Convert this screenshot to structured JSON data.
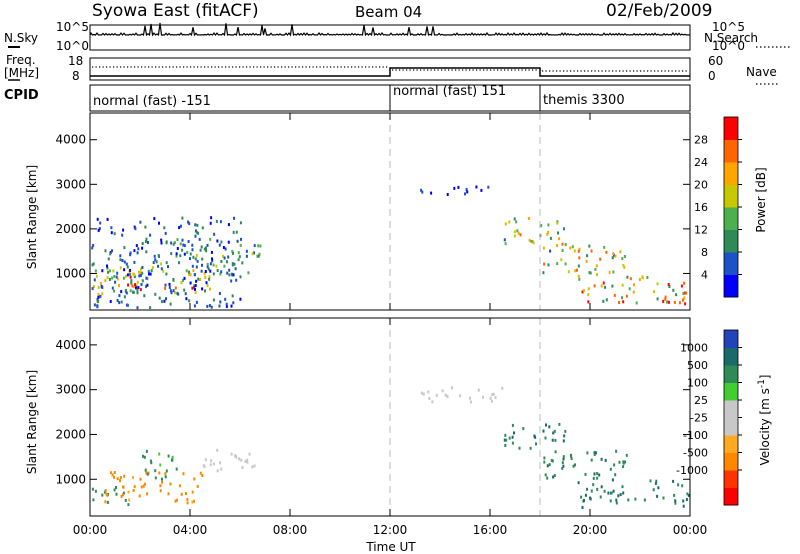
{
  "header": {
    "station": "Syowa East (fitACF)",
    "beam": "Beam 04",
    "date": "02/Feb/2009"
  },
  "nsky_panel": {
    "left_label": "N.Sky",
    "right_label": "N.Search",
    "left_ticks": [
      "10^5",
      "10^0"
    ],
    "right_ticks": [
      "10^5",
      "10^0"
    ]
  },
  "freq_panel": {
    "left_label_1": "Freq.",
    "left_label_2": "[MHz]",
    "right_label": "Nave",
    "left_ticks": [
      "18",
      "8"
    ],
    "right_ticks": [
      "60",
      "0"
    ]
  },
  "cpid_panel": {
    "label": "CPID",
    "segments": [
      {
        "label": "normal (fast) -151",
        "start_h": 0,
        "end_h": 12
      },
      {
        "label": "normal (fast) 151",
        "start_h": 12,
        "end_h": 18
      },
      {
        "label": "themis 3300",
        "start_h": 18,
        "end_h": 24
      }
    ]
  },
  "x_axis": {
    "title": "Time UT",
    "ticks": [
      "00:00",
      "04:00",
      "08:00",
      "12:00",
      "16:00",
      "20:00",
      "00:00"
    ]
  },
  "colors": {
    "power_scale": [
      "#0000ff",
      "#1e50c8",
      "#2e8b57",
      "#4caf50",
      "#c8c800",
      "#ffa500",
      "#ff6600",
      "#ff0000"
    ],
    "velocity_scale": [
      "#ff0000",
      "#ff3300",
      "#ff8800",
      "#ffaa22",
      "#c8c8c8",
      "#c8c8c8",
      "#44cc33",
      "#2e8b57",
      "#1a6a6a",
      "#2244bb"
    ]
  },
  "chart_data": [
    {
      "type": "heatmap",
      "title": "Power",
      "xlabel": "Time UT",
      "ylabel": "Slant Range [km]",
      "x_range_hours": [
        0,
        24
      ],
      "ylim": [
        180,
        4600
      ],
      "yticks": [
        1000,
        2000,
        3000,
        4000
      ],
      "colorbar_label": "Power [dB]",
      "colorbar_ticks": [
        "4",
        "8",
        "12",
        "16",
        "20",
        "24",
        "28"
      ],
      "colorbar_range": [
        0,
        30
      ],
      "echo_regions": [
        {
          "t0": 0.0,
          "t1": 2.5,
          "r0": 400,
          "r1": 1200,
          "v_lo": 8,
          "v_hi": 22
        },
        {
          "t0": 1.2,
          "t1": 4.8,
          "r0": 600,
          "r1": 1100,
          "v_lo": 14,
          "v_hi": 28
        },
        {
          "t0": 2.5,
          "t1": 6.8,
          "r0": 1000,
          "r1": 1800,
          "v_lo": 4,
          "v_hi": 16
        },
        {
          "t0": 0.0,
          "t1": 6.0,
          "r0": 250,
          "r1": 2300,
          "v_lo": 2,
          "v_hi": 10
        },
        {
          "t0": 13.2,
          "t1": 16.6,
          "r0": 2800,
          "r1": 3000,
          "v_lo": 2,
          "v_hi": 8
        },
        {
          "t0": 16.5,
          "t1": 19.0,
          "r0": 1700,
          "r1": 2300,
          "v_lo": 6,
          "v_hi": 24
        },
        {
          "t0": 18.0,
          "t1": 21.5,
          "r0": 1000,
          "r1": 1700,
          "v_lo": 6,
          "v_hi": 26
        },
        {
          "t0": 19.5,
          "t1": 24.0,
          "r0": 350,
          "r1": 1000,
          "v_lo": 8,
          "v_hi": 30
        }
      ]
    },
    {
      "type": "heatmap",
      "title": "Velocity",
      "xlabel": "Time UT",
      "ylabel": "Slant Range [km]",
      "x_range_hours": [
        0,
        24
      ],
      "ylim": [
        180,
        4600
      ],
      "yticks": [
        1000,
        2000,
        3000,
        4000
      ],
      "colorbar_label": "Velocity [m s^-1]",
      "colorbar_ticks": [
        "1000",
        "500",
        "100",
        "25",
        "-25",
        "-100",
        "-500",
        "-1000"
      ],
      "echo_regions": [
        {
          "t0": 0.0,
          "t1": 1.5,
          "r0": 400,
          "r1": 900,
          "v_lo": 100,
          "v_hi": 300
        },
        {
          "t0": 0.5,
          "t1": 4.5,
          "r0": 500,
          "r1": 1200,
          "v_lo": -400,
          "v_hi": -80
        },
        {
          "t0": 2.0,
          "t1": 3.5,
          "r0": 1000,
          "r1": 1700,
          "v_lo": 50,
          "v_hi": 400
        },
        {
          "t0": 4.5,
          "t1": 7.0,
          "r0": 1200,
          "r1": 1700,
          "v_lo": -20,
          "v_hi": 20
        },
        {
          "t0": 13.2,
          "t1": 16.5,
          "r0": 2750,
          "r1": 3100,
          "v_lo": -20,
          "v_hi": 20
        },
        {
          "t0": 16.5,
          "t1": 19.0,
          "r0": 1700,
          "r1": 2300,
          "v_lo": 100,
          "v_hi": 800
        },
        {
          "t0": 18.0,
          "t1": 21.5,
          "r0": 1000,
          "r1": 1700,
          "v_lo": 100,
          "v_hi": 600
        },
        {
          "t0": 19.5,
          "t1": 24.0,
          "r0": 400,
          "r1": 1000,
          "v_lo": 100,
          "v_hi": 1000
        }
      ]
    }
  ]
}
